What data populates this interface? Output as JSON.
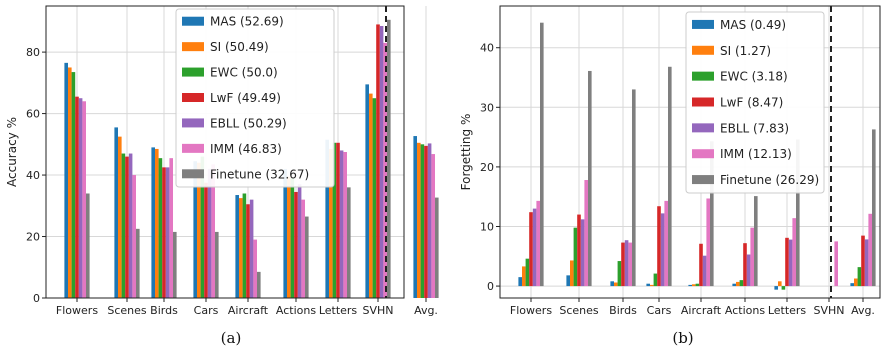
{
  "colors": {
    "MAS": "#1f77b4",
    "SI": "#ff7f0e",
    "EWC": "#2ca02c",
    "LwF": "#d62728",
    "EBLL": "#9467bd",
    "IMM": "#e377c2",
    "Finetune": "#7f7f7f"
  },
  "chart_data": [
    {
      "type": "bar",
      "caption": "(a)",
      "ylabel": "Accuracy %",
      "ylim": [
        0,
        95
      ],
      "yticks": [
        0,
        20,
        40,
        60,
        80
      ],
      "grid": true,
      "legend_placement": "top-center",
      "categories": [
        "Flowers",
        "Scenes",
        "Birds",
        "Cars",
        "Aircraft",
        "Actions",
        "Letters",
        "SVHN",
        "Avg."
      ],
      "series": [
        {
          "name": "MAS",
          "legend": "MAS (52.69)",
          "values": [
            76.5,
            55.5,
            49.0,
            44.5,
            33.5,
            42.0,
            51.5,
            69.5,
            52.69
          ]
        },
        {
          "name": "SI",
          "legend": "SI (50.49)",
          "values": [
            75.0,
            52.5,
            48.5,
            44.0,
            32.5,
            39.5,
            48.5,
            66.5,
            50.49
          ]
        },
        {
          "name": "EWC",
          "legend": "EWC (50.0)",
          "values": [
            73.5,
            47.0,
            45.5,
            46.0,
            34.0,
            39.0,
            50.5,
            65.0,
            50.0
          ]
        },
        {
          "name": "LwF",
          "legend": "LwF (49.49)",
          "values": [
            65.5,
            46.0,
            42.5,
            37.5,
            30.5,
            34.5,
            50.5,
            89.0,
            49.49
          ]
        },
        {
          "name": "EBLL",
          "legend": "EBLL (50.29)",
          "values": [
            65.0,
            47.0,
            42.5,
            42.0,
            32.0,
            37.0,
            48.0,
            88.5,
            50.29
          ]
        },
        {
          "name": "IMM",
          "legend": "IMM (46.83)",
          "values": [
            64.0,
            40.0,
            45.5,
            43.5,
            19.0,
            32.0,
            47.5,
            83.0,
            46.83
          ]
        },
        {
          "name": "Finetune",
          "legend": "Finetune (32.67)",
          "values": [
            34.0,
            22.5,
            21.5,
            21.5,
            8.5,
            26.5,
            36.0,
            90.5,
            32.67
          ]
        }
      ]
    },
    {
      "type": "bar",
      "caption": "(b)",
      "ylabel": "Forgetting %",
      "ylim": [
        -2,
        47
      ],
      "yticks": [
        0,
        10,
        20,
        30,
        40
      ],
      "grid": true,
      "legend_placement": "top-center",
      "categories": [
        "Flowers",
        "Scenes",
        "Birds",
        "Cars",
        "Aircraft",
        "Actions",
        "Letters",
        "SVHN",
        "Avg."
      ],
      "series": [
        {
          "name": "MAS",
          "legend": "MAS (0.49)",
          "values": [
            1.5,
            1.8,
            0.8,
            0.4,
            0.2,
            0.4,
            -0.6,
            0.0,
            0.49
          ]
        },
        {
          "name": "SI",
          "legend": "SI (1.27)",
          "values": [
            3.3,
            4.3,
            0.6,
            0.2,
            0.3,
            0.7,
            0.8,
            0.0,
            1.27
          ]
        },
        {
          "name": "EWC",
          "legend": "EWC (3.18)",
          "values": [
            4.6,
            9.8,
            4.2,
            2.1,
            0.4,
            1.0,
            -0.6,
            0.0,
            3.18
          ]
        },
        {
          "name": "LwF",
          "legend": "LwF (8.47)",
          "values": [
            12.4,
            12.0,
            7.3,
            13.4,
            7.1,
            7.2,
            8.1,
            0.0,
            8.47
          ]
        },
        {
          "name": "EBLL",
          "legend": "EBLL (7.83)",
          "values": [
            13.0,
            11.2,
            7.7,
            12.2,
            5.1,
            5.3,
            7.8,
            0.0,
            7.83
          ]
        },
        {
          "name": "IMM",
          "legend": "IMM (12.13)",
          "values": [
            14.3,
            17.8,
            7.3,
            14.3,
            14.7,
            9.8,
            11.4,
            7.5,
            12.13
          ]
        },
        {
          "name": "Finetune",
          "legend": "Finetune (26.29)",
          "values": [
            44.2,
            36.1,
            33.0,
            36.8,
            24.3,
            15.1,
            24.6,
            0.0,
            26.29
          ]
        }
      ]
    }
  ]
}
